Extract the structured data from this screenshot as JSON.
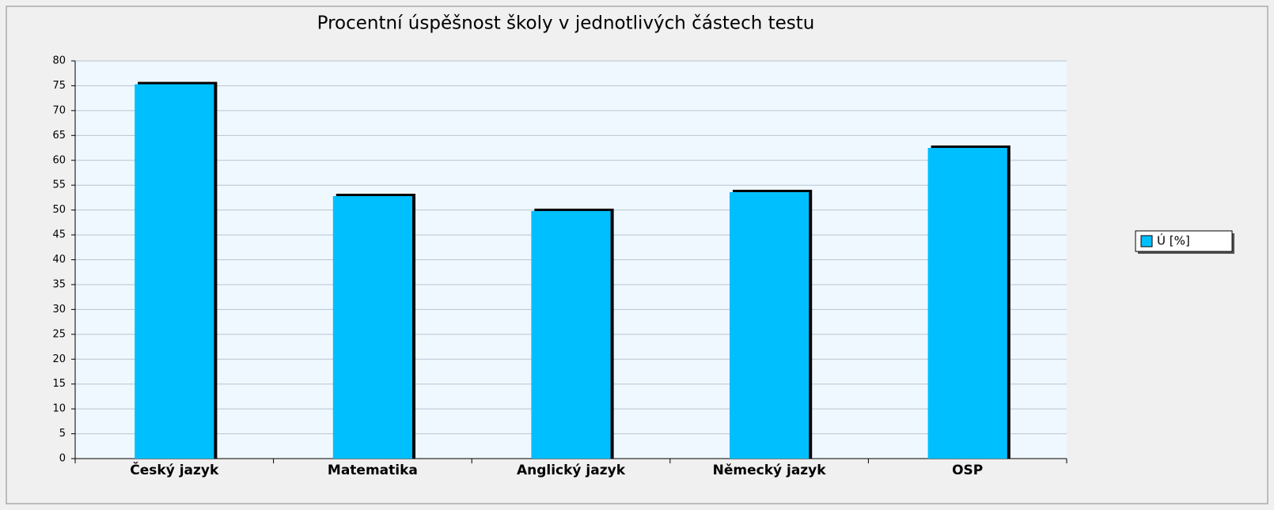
{
  "chart_data": {
    "type": "bar",
    "title": "Procentní úspěšnost školy v jednotlivých částech testu",
    "categories": [
      "Český jazyk",
      "Matematika",
      "Anglický jazyk",
      "Německý jazyk",
      "OSP"
    ],
    "series": [
      {
        "name": "Ú [%]",
        "color": "#00bfff",
        "values": [
          75.3,
          52.8,
          49.8,
          53.6,
          62.5
        ]
      }
    ],
    "ylim": [
      0,
      80
    ],
    "yticks": [
      0,
      5,
      10,
      15,
      20,
      25,
      30,
      35,
      40,
      45,
      50,
      55,
      60,
      65,
      70,
      75,
      80
    ],
    "grid": true,
    "legend": "right"
  }
}
